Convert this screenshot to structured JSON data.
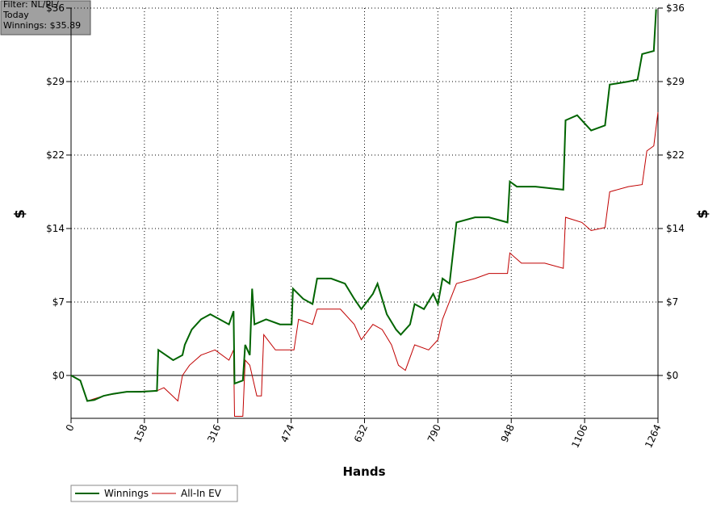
{
  "chart_data": {
    "type": "line",
    "annotation": [
      "Filter: NL/PL/",
      "Today",
      "Winnings: $35.89"
    ],
    "xlabel": "Hands",
    "ylabel": "$",
    "xlim": [
      0,
      1264
    ],
    "xticks": [
      0,
      158,
      316,
      474,
      632,
      790,
      948,
      1106,
      1264
    ],
    "ylim": [
      -4.2,
      36
    ],
    "yticks": [
      {
        "value": 0,
        "label": "$0"
      },
      {
        "value": 7.2,
        "label": "$7"
      },
      {
        "value": 14.4,
        "label": "$14"
      },
      {
        "value": 21.6,
        "label": "$22"
      },
      {
        "value": 28.8,
        "label": "$29"
      },
      {
        "value": 36,
        "label": "$36"
      }
    ],
    "grid": true,
    "legend": "bottom-left",
    "series": [
      {
        "name": "Winnings",
        "color": "#006400",
        "x": [
          0,
          20,
          35,
          50,
          70,
          90,
          120,
          150,
          185,
          188,
          220,
          240,
          245,
          260,
          280,
          300,
          340,
          350,
          352,
          370,
          375,
          385,
          390,
          395,
          420,
          450,
          475,
          478,
          500,
          520,
          530,
          560,
          590,
          610,
          625,
          650,
          660,
          680,
          700,
          710,
          730,
          740,
          760,
          780,
          790,
          800,
          815,
          830,
          870,
          900,
          940,
          945,
          960,
          1000,
          1060,
          1065,
          1090,
          1120,
          1150,
          1160,
          1200,
          1220,
          1230,
          1255,
          1260
        ],
        "values": [
          0,
          -0.5,
          -2.5,
          -2.4,
          -2,
          -1.8,
          -1.6,
          -1.6,
          -1.5,
          2.5,
          1.5,
          2,
          3,
          4.5,
          5.5,
          6,
          5,
          6.3,
          -0.8,
          -0.5,
          3,
          2,
          8.5,
          5,
          5.5,
          5,
          5,
          8.5,
          7.5,
          7,
          9.5,
          9.5,
          9,
          7.5,
          6.5,
          8,
          9,
          6,
          4.5,
          4,
          5,
          7,
          6.5,
          8,
          7,
          9.5,
          9,
          15,
          15.5,
          15.5,
          15,
          19,
          18.5,
          18.5,
          18.2,
          25,
          25.5,
          24,
          24.5,
          28.5,
          28.8,
          29,
          31.5,
          31.8,
          35.89
        ]
      },
      {
        "name": "All-In EV",
        "color": "#c00000",
        "x": [
          0,
          20,
          35,
          70,
          120,
          185,
          200,
          230,
          240,
          255,
          280,
          310,
          340,
          350,
          352,
          370,
          375,
          385,
          400,
          410,
          415,
          440,
          480,
          490,
          520,
          530,
          580,
          610,
          625,
          650,
          670,
          690,
          705,
          720,
          740,
          770,
          790,
          800,
          830,
          870,
          900,
          940,
          945,
          970,
          1020,
          1060,
          1065,
          1100,
          1120,
          1150,
          1160,
          1200,
          1230,
          1240,
          1255,
          1264
        ],
        "values": [
          0,
          -0.5,
          -2.5,
          -2,
          -1.6,
          -1.5,
          -1.2,
          -2.5,
          0,
          1,
          2,
          2.5,
          1.5,
          2.5,
          -4,
          -4,
          1.5,
          1,
          -2,
          -2,
          4,
          2.5,
          2.5,
          5.5,
          5,
          6.5,
          6.5,
          5,
          3.5,
          5,
          4.5,
          3,
          1,
          0.5,
          3,
          2.5,
          3.5,
          5.5,
          9,
          9.5,
          10,
          10,
          12,
          11,
          11,
          10.5,
          15.5,
          15,
          14.2,
          14.5,
          18,
          18.5,
          18.7,
          22,
          22.5,
          25.8
        ]
      }
    ]
  }
}
